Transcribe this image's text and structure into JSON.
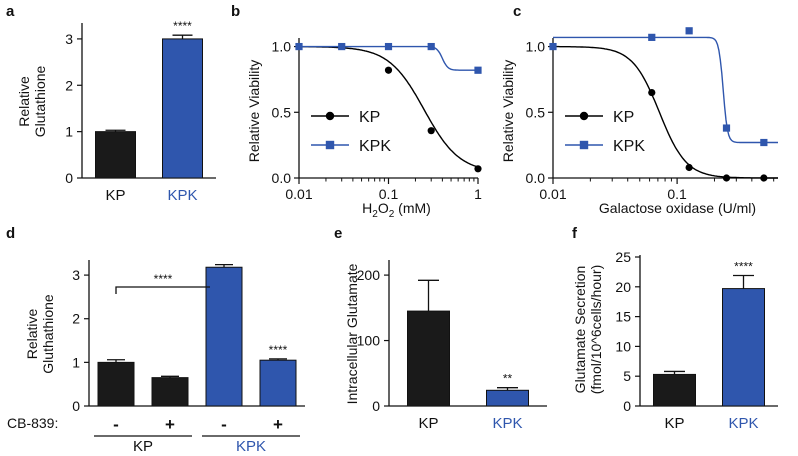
{
  "colors": {
    "kp": "#1a1a1a",
    "kpk": "#2f56ad",
    "axis": "#111111",
    "curve": "#000000"
  },
  "chart_data": [
    {
      "panel": "a",
      "type": "bar",
      "ylabel_lines": [
        "Relative",
        "Glutathione"
      ],
      "categories": [
        "KP",
        "KPK"
      ],
      "values": [
        1.0,
        3.0
      ],
      "errors": [
        0.03,
        0.08
      ],
      "ylim": [
        0,
        3.3
      ],
      "yticks": [
        "0",
        "1",
        "2",
        "3"
      ],
      "significance": [
        "",
        "****"
      ]
    },
    {
      "panel": "b",
      "type": "line",
      "xscale": "log",
      "xlabel": "H2O2 (mM)",
      "xlabel_base": "H",
      "xlabel_sub": "2",
      "xlabel_mid": "O",
      "xlabel_sub2": "2",
      "xlabel_tail": " (mM)",
      "ylabel": "Relative Viability",
      "xlim": [
        0.01,
        1
      ],
      "ylim": [
        0,
        1.05
      ],
      "xticks": [
        "0.01",
        "0.1",
        "1"
      ],
      "yticks": [
        "0.0",
        "0.5",
        "1.0"
      ],
      "series": [
        {
          "name": "KP",
          "marker": "circle",
          "x": [
            0.1,
            0.3,
            1.0
          ],
          "y": [
            0.82,
            0.36,
            0.07
          ],
          "curve": {
            "top": 1.0,
            "bottom": 0.04,
            "ec50": 0.25,
            "hill": 2.2
          }
        },
        {
          "name": "KPK",
          "marker": "square",
          "x": [
            0.01,
            0.03,
            0.1,
            0.3,
            1.0
          ],
          "y": [
            1.0,
            1.0,
            1.0,
            1.0,
            0.82
          ],
          "curve": {
            "top": 1.0,
            "bottom": 0.82,
            "ec50": 0.4,
            "hill": 14
          }
        }
      ],
      "legend": [
        "KP",
        "KPK"
      ]
    },
    {
      "panel": "c",
      "type": "line",
      "xscale": "log",
      "xlabel": "Galactose oxidase (U/ml)",
      "ylabel": "Relative Viability",
      "xlim": [
        0.01,
        0.65
      ],
      "ylim": [
        0,
        1.05
      ],
      "xticks": [
        "0.01",
        "0.1"
      ],
      "yticks": [
        "0.0",
        "0.5",
        "1.0"
      ],
      "series": [
        {
          "name": "KP",
          "marker": "circle",
          "x": [
            0.0625,
            0.125,
            0.25,
            0.5
          ],
          "y": [
            0.65,
            0.08,
            0.0,
            0.0
          ],
          "curve": {
            "top": 1.0,
            "bottom": 0.0,
            "ec50": 0.072,
            "hill": 4
          }
        },
        {
          "name": "KPK",
          "marker": "square",
          "x": [
            0.01,
            0.0625,
            0.125,
            0.25,
            0.5
          ],
          "y": [
            1.0,
            1.07,
            1.12,
            0.38,
            0.27
          ],
          "curve": {
            "top": 1.07,
            "bottom": 0.27,
            "ec50": 0.235,
            "hill": 25
          }
        }
      ],
      "legend": [
        "KP",
        "KPK"
      ]
    },
    {
      "panel": "d",
      "type": "bar",
      "ylabel_lines": [
        "Relative",
        "Gluthathione"
      ],
      "treatment_label": "CB-839:",
      "treatment_signs": [
        "-",
        "+",
        "-",
        "+"
      ],
      "groups": [
        "KP",
        "KPK"
      ],
      "values": [
        1.0,
        0.65,
        3.18,
        1.05
      ],
      "errors": [
        0.06,
        0.03,
        0.06,
        0.03
      ],
      "bar_groups": [
        "KP",
        "KP",
        "KPK",
        "KPK"
      ],
      "ylim": [
        0,
        3.3
      ],
      "yticks": [
        "0",
        "1",
        "2",
        "3"
      ],
      "significance": [
        "",
        "",
        "",
        "****"
      ],
      "bracket": {
        "from": 0,
        "to": 2,
        "label": "****"
      }
    },
    {
      "panel": "e",
      "type": "bar",
      "ylabel": "Intracellular Glutamate",
      "categories": [
        "KP",
        "KPK"
      ],
      "values": [
        145,
        24
      ],
      "errors": [
        47,
        4
      ],
      "ylim": [
        0,
        220
      ],
      "yticks": [
        "0",
        "100",
        "200"
      ],
      "significance": [
        "",
        "**"
      ]
    },
    {
      "panel": "f",
      "type": "bar",
      "ylabel_lines": [
        "Glutamate Secretion",
        "(fmol/10^6cells/hour)"
      ],
      "categories": [
        "KP",
        "KPK"
      ],
      "values": [
        5.3,
        19.7
      ],
      "errors": [
        0.5,
        2.2
      ],
      "ylim": [
        0,
        25
      ],
      "yticks": [
        "0",
        "5",
        "10",
        "15",
        "20",
        "25"
      ],
      "significance": [
        "",
        "****"
      ]
    }
  ]
}
